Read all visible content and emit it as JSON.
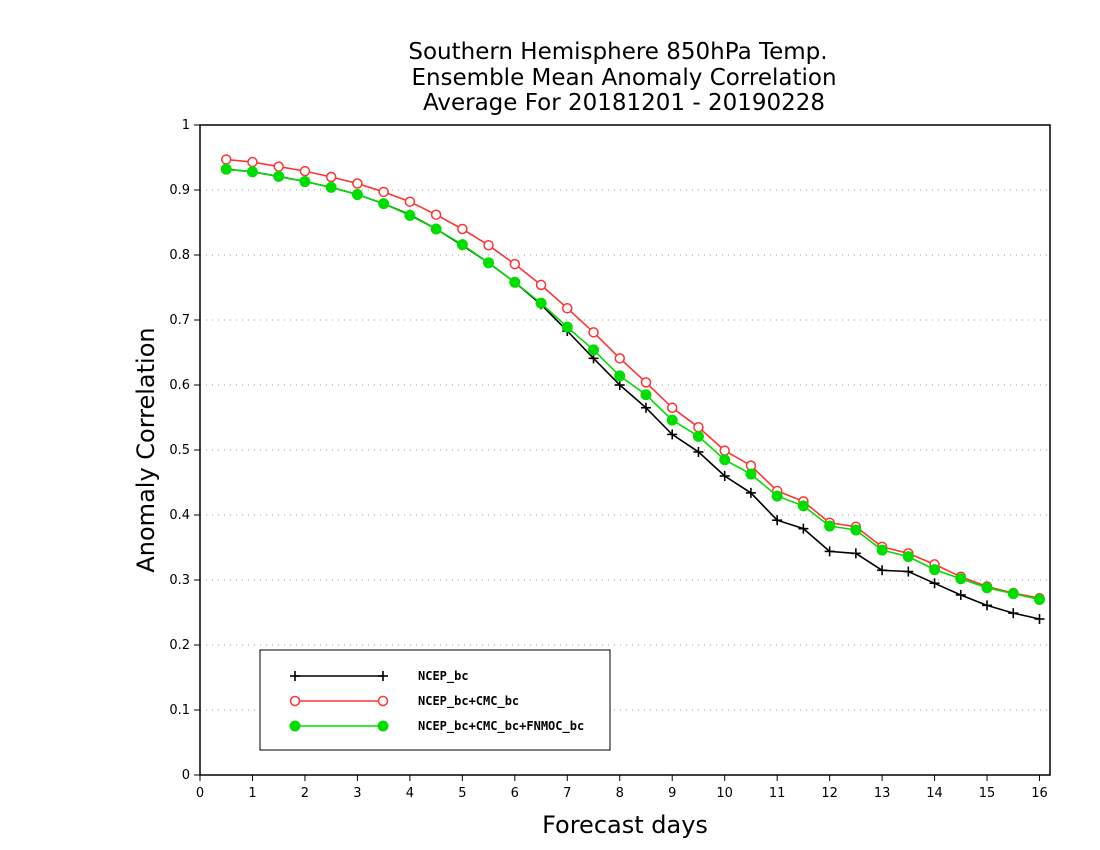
{
  "chart_data": {
    "type": "line",
    "title": [
      "Southern Hemisphere 850hPa Temp.",
      "Ensemble Mean Anomaly Correlation",
      "Average For 20181201 - 20190228"
    ],
    "xlabel": "Forecast days",
    "ylabel": "Anomaly Correlation",
    "xlim": [
      0,
      16.2
    ],
    "ylim": [
      0,
      1
    ],
    "xticks": [
      "0",
      "1",
      "2",
      "3",
      "4",
      "5",
      "6",
      "7",
      "8",
      "9",
      "10",
      "11",
      "12",
      "13",
      "14",
      "15",
      "16"
    ],
    "yticks": [
      "0",
      "0.1",
      "0.2",
      "0.3",
      "0.4",
      "0.5",
      "0.6",
      "0.7",
      "0.8",
      "0.9",
      "1"
    ],
    "grid": "dotted-horizontal",
    "legend_position": "bottom-left",
    "x": [
      0.5,
      1,
      1.5,
      2,
      2.5,
      3,
      3.5,
      4,
      4.5,
      5,
      5.5,
      6,
      6.5,
      7,
      7.5,
      8,
      8.5,
      9,
      9.5,
      10,
      10.5,
      11,
      11.5,
      12,
      12.5,
      13,
      13.5,
      14,
      14.5,
      15,
      15.5,
      16
    ],
    "series": [
      {
        "name": "NCEP_bc",
        "color": "#000000",
        "marker": "plus",
        "values": [
          0.932,
          0.928,
          0.921,
          0.913,
          0.904,
          0.893,
          0.879,
          0.862,
          0.84,
          0.815,
          0.788,
          0.758,
          0.724,
          0.683,
          0.641,
          0.6,
          0.565,
          0.524,
          0.497,
          0.46,
          0.434,
          0.392,
          0.379,
          0.344,
          0.341,
          0.315,
          0.313,
          0.295,
          0.277,
          0.261,
          0.249,
          0.24
        ]
      },
      {
        "name": "NCEP_bc+CMC_bc",
        "color": "#ff3333",
        "marker": "open-circle",
        "values": [
          0.947,
          0.943,
          0.936,
          0.929,
          0.92,
          0.91,
          0.897,
          0.882,
          0.862,
          0.84,
          0.815,
          0.786,
          0.754,
          0.718,
          0.681,
          0.641,
          0.604,
          0.565,
          0.535,
          0.499,
          0.476,
          0.437,
          0.421,
          0.388,
          0.382,
          0.351,
          0.341,
          0.324,
          0.305,
          0.29,
          0.28,
          0.272
        ]
      },
      {
        "name": "NCEP_bc+CMC_bc+FNMOC_bc",
        "color": "#00dd00",
        "marker": "filled-circle",
        "values": [
          0.932,
          0.928,
          0.921,
          0.913,
          0.904,
          0.893,
          0.879,
          0.861,
          0.84,
          0.816,
          0.788,
          0.758,
          0.726,
          0.689,
          0.654,
          0.614,
          0.585,
          0.546,
          0.521,
          0.485,
          0.463,
          0.429,
          0.414,
          0.383,
          0.377,
          0.346,
          0.336,
          0.316,
          0.302,
          0.288,
          0.279,
          0.27
        ]
      }
    ]
  }
}
